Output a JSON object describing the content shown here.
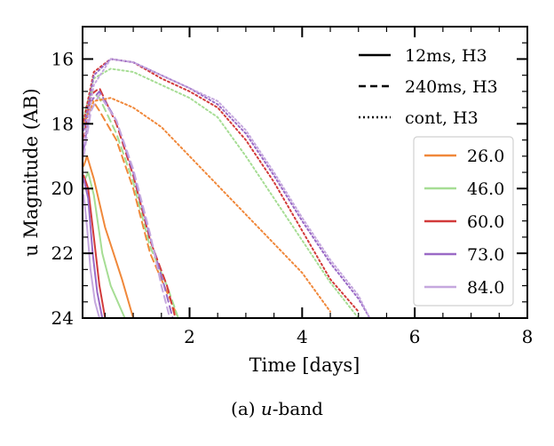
{
  "caption": {
    "prefix": "(a)",
    "band": "u",
    "suffix": "-band"
  },
  "chart_data": {
    "type": "line",
    "xlabel": "Time [days]",
    "ylabel": "u Magnitude (AB)",
    "xlim": [
      0.1,
      8
    ],
    "ylim": [
      24,
      15
    ],
    "y_inverted": true,
    "xticks": [
      2,
      4,
      6,
      8
    ],
    "yticks": [
      16,
      18,
      20,
      22,
      24
    ],
    "legend_styles": [
      {
        "label": "12ms, H3",
        "dash": "solid"
      },
      {
        "label": "240ms, H3",
        "dash": "dashed"
      },
      {
        "label": "cont, H3",
        "dash": "dotted"
      }
    ],
    "legend_angles": [
      {
        "label": "26.0",
        "color": "#f0883a"
      },
      {
        "label": "46.0",
        "color": "#a6dd94"
      },
      {
        "label": "60.0",
        "color": "#d23a3a"
      },
      {
        "label": "73.0",
        "color": "#9a6ac6"
      },
      {
        "label": "84.0",
        "color": "#c5a8de"
      }
    ],
    "series": [
      {
        "style": "12ms, H3",
        "angle": "26.0",
        "x": [
          0.12,
          0.18,
          0.3,
          0.5,
          0.8,
          1.0
        ],
        "y": [
          19.3,
          19.0,
          19.7,
          21.2,
          22.8,
          24.0
        ]
      },
      {
        "style": "12ms, H3",
        "angle": "46.0",
        "x": [
          0.12,
          0.2,
          0.3,
          0.45,
          0.6,
          0.85
        ],
        "y": [
          19.8,
          19.5,
          20.2,
          22.0,
          23.0,
          24.0
        ]
      },
      {
        "style": "12ms, H3",
        "angle": "60.0",
        "x": [
          0.12,
          0.2,
          0.3,
          0.4,
          0.5
        ],
        "y": [
          19.6,
          20.0,
          21.5,
          23.0,
          24.0
        ]
      },
      {
        "style": "12ms, H3",
        "angle": "73.0",
        "x": [
          0.12,
          0.2,
          0.28,
          0.36,
          0.45
        ],
        "y": [
          19.7,
          20.3,
          22.0,
          23.2,
          24.0
        ]
      },
      {
        "style": "12ms, H3",
        "angle": "84.0",
        "x": [
          0.12,
          0.18,
          0.24,
          0.32,
          0.4
        ],
        "y": [
          20.2,
          21.2,
          22.5,
          23.5,
          24.0
        ]
      },
      {
        "style": "240ms, H3",
        "angle": "26.0",
        "x": [
          0.12,
          0.25,
          0.4,
          0.7,
          1.0,
          1.3,
          1.6,
          1.8
        ],
        "y": [
          18.0,
          17.2,
          17.6,
          18.5,
          20.0,
          22.0,
          23.2,
          24.0
        ]
      },
      {
        "style": "240ms, H3",
        "angle": "46.0",
        "x": [
          0.12,
          0.25,
          0.4,
          0.7,
          1.0,
          1.3,
          1.6,
          1.8
        ],
        "y": [
          18.2,
          17.0,
          17.2,
          18.3,
          19.8,
          21.8,
          23.0,
          24.0
        ]
      },
      {
        "style": "240ms, H3",
        "angle": "60.0",
        "x": [
          0.12,
          0.25,
          0.4,
          0.7,
          1.0,
          1.3,
          1.6,
          1.75
        ],
        "y": [
          18.5,
          17.1,
          16.9,
          18.0,
          19.6,
          21.6,
          23.0,
          24.0
        ]
      },
      {
        "style": "240ms, H3",
        "angle": "73.0",
        "x": [
          0.12,
          0.25,
          0.4,
          0.7,
          1.0,
          1.3,
          1.55,
          1.7
        ],
        "y": [
          18.8,
          17.3,
          17.0,
          17.9,
          19.5,
          21.5,
          23.0,
          24.0
        ]
      },
      {
        "style": "240ms, H3",
        "angle": "84.0",
        "x": [
          0.12,
          0.25,
          0.4,
          0.7,
          1.0,
          1.3,
          1.5,
          1.65
        ],
        "y": [
          19.0,
          17.6,
          17.1,
          17.9,
          19.4,
          21.4,
          23.0,
          24.0
        ]
      },
      {
        "style": "cont, H3",
        "angle": "26.0",
        "x": [
          0.12,
          0.3,
          0.6,
          1.0,
          1.5,
          2.0,
          2.5,
          3.0,
          3.5,
          4.0,
          4.5
        ],
        "y": [
          18.0,
          17.3,
          17.2,
          17.5,
          18.1,
          19.0,
          19.9,
          20.8,
          21.7,
          22.6,
          23.8
        ]
      },
      {
        "style": "cont, H3",
        "angle": "46.0",
        "x": [
          0.12,
          0.3,
          0.6,
          1.0,
          1.5,
          2.0,
          2.5,
          3.0,
          3.5,
          4.0,
          4.5,
          5.0
        ],
        "y": [
          17.8,
          16.6,
          16.3,
          16.4,
          16.8,
          17.2,
          17.8,
          19.0,
          20.3,
          21.6,
          22.9,
          24.0
        ]
      },
      {
        "style": "cont, H3",
        "angle": "60.0",
        "x": [
          0.12,
          0.3,
          0.6,
          1.0,
          1.5,
          2.0,
          2.5,
          3.0,
          3.5,
          4.0,
          4.5,
          5.0
        ],
        "y": [
          17.9,
          16.4,
          16.0,
          16.1,
          16.6,
          17.0,
          17.5,
          18.5,
          19.8,
          21.3,
          22.8,
          23.8
        ]
      },
      {
        "style": "cont, H3",
        "angle": "73.0",
        "x": [
          0.12,
          0.3,
          0.6,
          1.0,
          1.5,
          2.0,
          2.5,
          3.0,
          3.5,
          4.0,
          4.5,
          5.0,
          5.2
        ],
        "y": [
          18.2,
          16.5,
          16.0,
          16.1,
          16.5,
          16.9,
          17.4,
          18.3,
          19.6,
          21.0,
          22.3,
          23.4,
          24.0
        ]
      },
      {
        "style": "cont, H3",
        "angle": "84.0",
        "x": [
          0.12,
          0.3,
          0.6,
          1.0,
          1.5,
          2.0,
          2.5,
          3.0,
          3.5,
          4.0,
          4.5,
          5.0,
          5.2
        ],
        "y": [
          18.6,
          16.8,
          16.0,
          16.1,
          16.5,
          16.9,
          17.3,
          18.2,
          19.5,
          20.9,
          22.2,
          23.3,
          24.0
        ]
      }
    ]
  }
}
